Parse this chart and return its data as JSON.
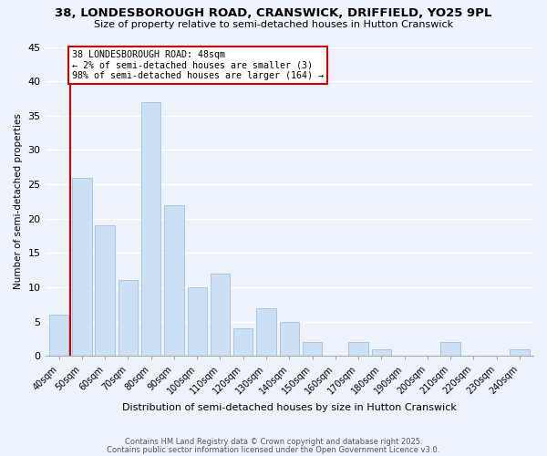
{
  "title": "38, LONDESBOROUGH ROAD, CRANSWICK, DRIFFIELD, YO25 9PL",
  "subtitle": "Size of property relative to semi-detached houses in Hutton Cranswick",
  "xlabel": "Distribution of semi-detached houses by size in Hutton Cranswick",
  "ylabel": "Number of semi-detached properties",
  "bar_labels": [
    "40sqm",
    "50sqm",
    "60sqm",
    "70sqm",
    "80sqm",
    "90sqm",
    "100sqm",
    "110sqm",
    "120sqm",
    "130sqm",
    "140sqm",
    "150sqm",
    "160sqm",
    "170sqm",
    "180sqm",
    "190sqm",
    "200sqm",
    "210sqm",
    "220sqm",
    "230sqm",
    "240sqm"
  ],
  "bar_values": [
    6,
    26,
    19,
    11,
    37,
    22,
    10,
    12,
    4,
    7,
    5,
    2,
    0,
    2,
    1,
    0,
    0,
    2,
    0,
    0,
    1
  ],
  "bar_color": "#cce0f5",
  "bar_edge_color": "#a8c8e8",
  "marker_line_color": "#cc0000",
  "annotation_title": "38 LONDESBOROUGH ROAD: 48sqm",
  "annotation_line1": "← 2% of semi-detached houses are smaller (3)",
  "annotation_line2": "98% of semi-detached houses are larger (164) →",
  "annotation_box_color": "#ffffff",
  "annotation_box_edge": "#cc0000",
  "ylim": [
    0,
    45
  ],
  "yticks": [
    0,
    5,
    10,
    15,
    20,
    25,
    30,
    35,
    40,
    45
  ],
  "background_color": "#eef2fb",
  "grid_color": "#ffffff",
  "footer_line1": "Contains HM Land Registry data © Crown copyright and database right 2025.",
  "footer_line2": "Contains public sector information licensed under the Open Government Licence v3.0."
}
